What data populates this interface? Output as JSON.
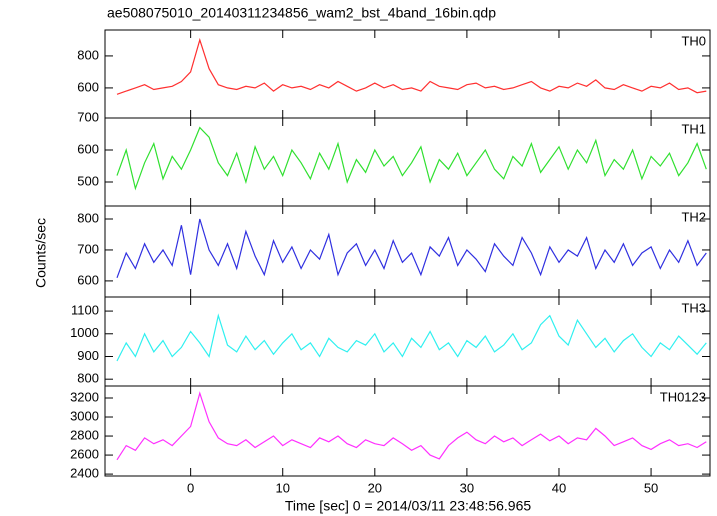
{
  "chart_data": {
    "type": "line",
    "title": "ae508075010_20140311234856_wam2_bst_4band_16bin.qdp",
    "xlabel": "Time [sec] 0 = 2014/03/11 23:48:56.965",
    "ylabel": "Counts/sec",
    "xlim": [
      -9.3,
      56.4
    ],
    "xticks": [
      0,
      10,
      20,
      30,
      40,
      50
    ],
    "x": [
      -8,
      -7,
      -6,
      -5,
      -4,
      -3,
      -2,
      -1,
      0,
      1,
      2,
      3,
      4,
      5,
      6,
      7,
      8,
      9,
      10,
      11,
      12,
      13,
      14,
      15,
      16,
      17,
      18,
      19,
      20,
      21,
      22,
      23,
      24,
      25,
      26,
      27,
      28,
      29,
      30,
      31,
      32,
      33,
      34,
      35,
      36,
      37,
      38,
      39,
      40,
      41,
      42,
      43,
      44,
      45,
      46,
      47,
      48,
      49,
      50,
      51,
      52,
      53,
      54,
      55,
      56
    ],
    "series": [
      {
        "name": "TH0",
        "color": "#ff3030",
        "ylim": [
          412,
          962
        ],
        "yticks": [
          600,
          800
        ],
        "values": [
          560,
          580,
          600,
          620,
          590,
          600,
          610,
          640,
          700,
          900,
          720,
          620,
          600,
          590,
          610,
          600,
          630,
          580,
          620,
          600,
          610,
          590,
          620,
          600,
          640,
          610,
          580,
          600,
          630,
          600,
          620,
          590,
          600,
          580,
          640,
          610,
          600,
          590,
          620,
          630,
          600,
          610,
          590,
          600,
          620,
          640,
          600,
          580,
          610,
          600,
          630,
          610,
          650,
          600,
          590,
          620,
          600,
          580,
          610,
          600,
          630,
          590,
          600,
          570,
          580
        ]
      },
      {
        "name": "TH1",
        "color": "#30e030",
        "ylim": [
          425,
          700
        ],
        "yticks": [
          500,
          600,
          700
        ],
        "values": [
          520,
          600,
          480,
          560,
          620,
          510,
          580,
          540,
          600,
          670,
          640,
          560,
          520,
          590,
          500,
          610,
          540,
          580,
          520,
          600,
          560,
          510,
          590,
          540,
          620,
          500,
          570,
          530,
          600,
          550,
          580,
          520,
          560,
          610,
          500,
          570,
          540,
          590,
          520,
          560,
          600,
          540,
          510,
          580,
          550,
          620,
          530,
          570,
          610,
          540,
          600,
          560,
          630,
          520,
          570,
          540,
          600,
          510,
          580,
          550,
          590,
          520,
          560,
          620,
          540
        ]
      },
      {
        "name": "TH2",
        "color": "#3030e0",
        "ylim": [
          548,
          842
        ],
        "yticks": [
          600,
          700,
          800
        ],
        "values": [
          610,
          690,
          640,
          720,
          660,
          700,
          650,
          780,
          620,
          800,
          700,
          650,
          720,
          640,
          760,
          680,
          620,
          730,
          660,
          710,
          640,
          700,
          670,
          750,
          620,
          690,
          720,
          650,
          700,
          640,
          730,
          660,
          690,
          620,
          710,
          680,
          740,
          650,
          700,
          670,
          630,
          720,
          680,
          650,
          740,
          690,
          620,
          710,
          660,
          700,
          680,
          740,
          640,
          700,
          660,
          720,
          650,
          690,
          710,
          640,
          700,
          660,
          730,
          650,
          690
        ]
      },
      {
        "name": "TH3",
        "color": "#30f0f0",
        "ylim": [
          770,
          1162
        ],
        "yticks": [
          800,
          900,
          1000,
          1100
        ],
        "values": [
          880,
          960,
          900,
          1000,
          920,
          970,
          900,
          940,
          1010,
          960,
          900,
          1080,
          950,
          920,
          990,
          930,
          970,
          910,
          960,
          1000,
          930,
          960,
          900,
          980,
          940,
          920,
          970,
          950,
          1000,
          920,
          960,
          900,
          980,
          940,
          1010,
          930,
          960,
          900,
          970,
          940,
          990,
          920,
          950,
          1000,
          930,
          960,
          1040,
          1080,
          990,
          950,
          1060,
          1000,
          940,
          980,
          920,
          970,
          1000,
          940,
          900,
          960,
          930,
          990,
          950,
          910,
          960
        ]
      },
      {
        "name": "TH0123",
        "color": "#ff30ff",
        "ylim": [
          2380,
          3326
        ],
        "yticks": [
          2400,
          2600,
          2800,
          3000,
          3200
        ],
        "values": [
          2550,
          2700,
          2650,
          2780,
          2720,
          2760,
          2700,
          2800,
          2900,
          3250,
          2950,
          2780,
          2720,
          2700,
          2760,
          2680,
          2740,
          2800,
          2700,
          2760,
          2720,
          2680,
          2780,
          2740,
          2800,
          2720,
          2680,
          2760,
          2720,
          2700,
          2780,
          2720,
          2650,
          2700,
          2600,
          2560,
          2700,
          2780,
          2840,
          2760,
          2720,
          2800,
          2740,
          2780,
          2700,
          2760,
          2820,
          2750,
          2800,
          2720,
          2780,
          2760,
          2880,
          2800,
          2700,
          2740,
          2780,
          2700,
          2660,
          2720,
          2760,
          2700,
          2720,
          2680,
          2740
        ]
      }
    ]
  }
}
